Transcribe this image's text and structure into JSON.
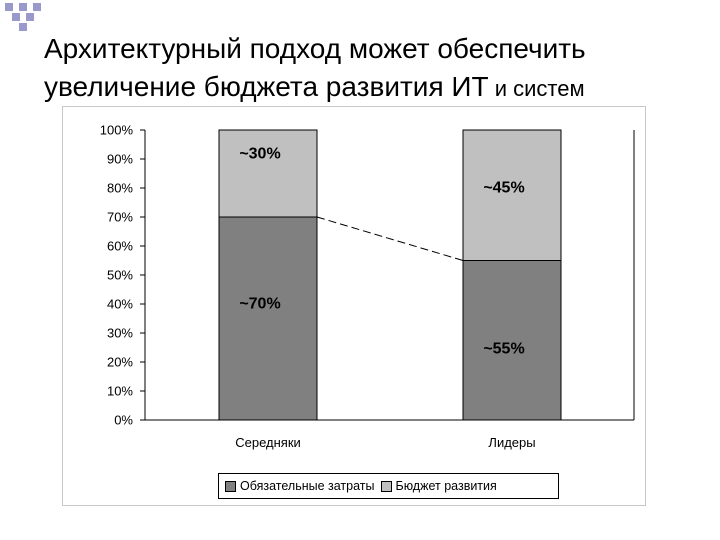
{
  "slide": {
    "title_line1": "Архитектурный подход может обеспечить",
    "title_line2_main": "увеличение бюджета развития ИТ",
    "title_line2_tail": " и систем"
  },
  "colors": {
    "deco_square": "#9999cc",
    "bar_bottom": "#808080",
    "bar_top": "#c0c0c0"
  },
  "chart_data": {
    "type": "bar",
    "stacked": true,
    "categories": [
      "Середняки",
      "Лидеры"
    ],
    "series": [
      {
        "name": "Обязательные затраты",
        "values": [
          70,
          55
        ],
        "labels": [
          "~70%",
          "~55%"
        ],
        "color": "#808080"
      },
      {
        "name": "Бюджет развития",
        "values": [
          30,
          45
        ],
        "labels": [
          "~30%",
          "~45%"
        ],
        "color": "#c0c0c0"
      }
    ],
    "y_ticks": [
      "0%",
      "10%",
      "20%",
      "30%",
      "40%",
      "50%",
      "60%",
      "70%",
      "80%",
      "90%",
      "100%"
    ],
    "ylim": [
      0,
      100
    ],
    "grid": false,
    "legend_position": "bottom",
    "connector": "dashed line between the tops of the bottom segments"
  }
}
